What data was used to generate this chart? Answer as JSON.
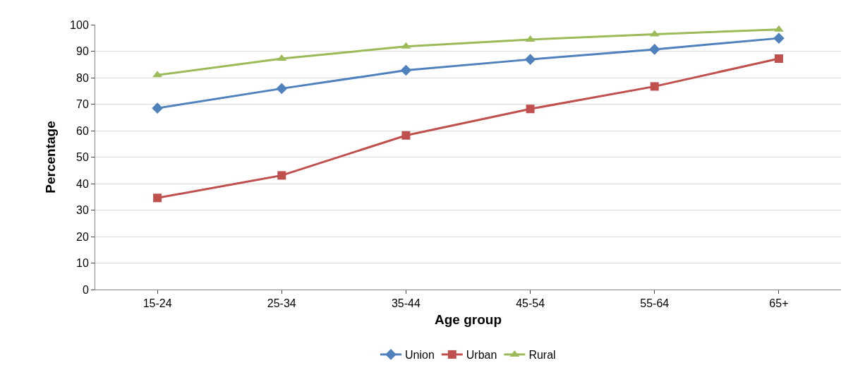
{
  "chart_data": {
    "type": "line",
    "xlabel": "Age group",
    "ylabel": "Percentage",
    "categories": [
      "15-24",
      "25-34",
      "35-44",
      "45-54",
      "55-64",
      "65+"
    ],
    "series": [
      {
        "name": "Union",
        "color": "#4f81bd",
        "marker": "diamond",
        "values": [
          68.5,
          75.9,
          82.8,
          86.9,
          90.7,
          94.9
        ]
      },
      {
        "name": "Urban",
        "color": "#c0504d",
        "marker": "square",
        "values": [
          34.6,
          43.1,
          58.2,
          68.2,
          76.7,
          87.2
        ]
      },
      {
        "name": "Rural",
        "color": "#9bbb59",
        "marker": "triangle",
        "values": [
          81.0,
          87.2,
          91.8,
          94.4,
          96.4,
          98.2
        ]
      }
    ],
    "ylim": [
      0,
      100
    ],
    "yticks": [
      0,
      10,
      20,
      30,
      40,
      50,
      60,
      70,
      80,
      90,
      100
    ],
    "grid": "y",
    "legend": "bottom",
    "line_style": "solid"
  }
}
